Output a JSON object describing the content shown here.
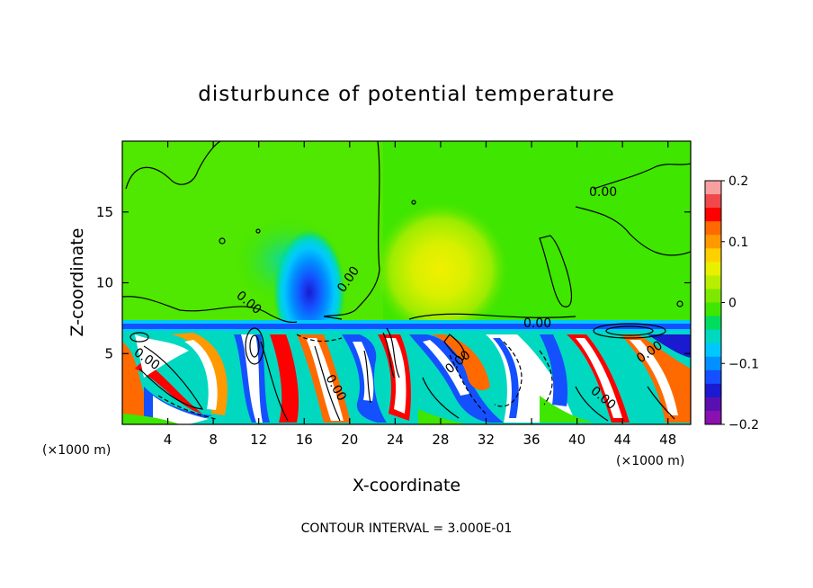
{
  "chart_data": {
    "type": "heatmap",
    "title": "disturbunce of potential temperature",
    "xlabel": "X-coordinate",
    "ylabel": "Z-coordinate",
    "x_unit_label": "(×1000 m)",
    "y_unit_label": "(×1000 m)",
    "footer": "CONTOUR INTERVAL = 3.000E-01",
    "xlim": [
      0,
      50
    ],
    "ylim": [
      0,
      20
    ],
    "x_ticks": [
      4,
      8,
      12,
      16,
      20,
      24,
      28,
      32,
      36,
      40,
      44,
      48
    ],
    "y_ticks": [
      5,
      10,
      15
    ],
    "colorbar": {
      "ticks": [
        "0.2",
        "0.1",
        "0",
        "−0.1",
        "−0.2"
      ],
      "tick_values": [
        0.2,
        0.1,
        0,
        -0.1,
        -0.2
      ],
      "range": [
        -0.2,
        0.2
      ],
      "colors": [
        "#f8a0a0",
        "#f0484b",
        "#ff0000",
        "#ff6a00",
        "#ff9900",
        "#ffd000",
        "#e8f000",
        "#b8ee00",
        "#7ee800",
        "#3fe600",
        "#00dc60",
        "#00d8c0",
        "#00c8ff",
        "#0090ff",
        "#1450ff",
        "#1a1ad0",
        "#5a10b0",
        "#8a10b0"
      ]
    },
    "contour_labels": [
      "0.00",
      "0.00",
      "0.00",
      "0.00",
      "0.00",
      "0.00",
      "0.00",
      "0.00",
      "0.00"
    ],
    "contour_interval": 0.3,
    "features": [
      {
        "name": "cold-column",
        "x": 16.5,
        "z": 10,
        "value": -0.1
      },
      {
        "name": "warm-patch",
        "x": 28,
        "z": 11,
        "value": 0.06
      },
      {
        "name": "inversion-layer",
        "z": 6.8,
        "value": -0.1
      }
    ]
  }
}
